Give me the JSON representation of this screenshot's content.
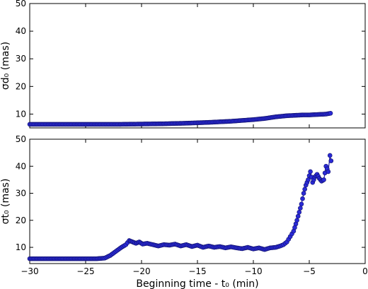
{
  "chart_data": [
    {
      "type": "line",
      "panel": "top",
      "ylabel": "σd₀ (mas)",
      "xlabel": "",
      "xlim": [
        -30,
        0
      ],
      "ylim": [
        5,
        50
      ],
      "yticks": [
        10,
        20,
        30,
        40,
        50
      ],
      "xticks": [
        -30,
        -25,
        -20,
        -15,
        -10,
        -5,
        0
      ],
      "show_x_tick_labels": false,
      "series": [
        {
          "color": "#2a2ad6",
          "x": [
            -30,
            -28,
            -26,
            -24,
            -22,
            -20,
            -18,
            -16,
            -14,
            -12,
            -11,
            -10,
            -9,
            -8.5,
            -8,
            -7.5,
            -7,
            -6.5,
            -6,
            -5.5,
            -5,
            -4.5,
            -4,
            -3.5,
            -3.1
          ],
          "y": [
            6.3,
            6.3,
            6.3,
            6.3,
            6.3,
            6.4,
            6.5,
            6.7,
            7.0,
            7.4,
            7.7,
            8.0,
            8.4,
            8.7,
            9.0,
            9.2,
            9.4,
            9.5,
            9.6,
            9.7,
            9.7,
            9.8,
            9.9,
            10.0,
            10.3
          ]
        }
      ]
    },
    {
      "type": "line",
      "panel": "bottom",
      "ylabel": "σt₀ (mas)",
      "xlabel": "Beginning time - t₀ (min)",
      "xlim": [
        -30,
        0
      ],
      "ylim": [
        4,
        50
      ],
      "yticks": [
        10,
        20,
        30,
        40,
        50
      ],
      "xticks": [
        -30,
        -25,
        -20,
        -15,
        -10,
        -5,
        0
      ],
      "xtick_labels": [
        "−30",
        "−25",
        "−20",
        "−15",
        "−10",
        "−5",
        "0"
      ],
      "show_x_tick_labels": true,
      "series": [
        {
          "color": "#2a2ad6",
          "x": [
            -30,
            -28,
            -26,
            -24,
            -23.3,
            -22.8,
            -22.3,
            -21.8,
            -21.4,
            -21.1,
            -20.8,
            -20.5,
            -20.2,
            -19.9,
            -19.5,
            -19,
            -18.5,
            -18,
            -17.5,
            -17,
            -16.5,
            -16,
            -15.5,
            -15,
            -14.5,
            -14,
            -13.5,
            -13,
            -12.5,
            -12,
            -11.5,
            -11,
            -10.5,
            -10,
            -9.5,
            -9,
            -8.5,
            -8,
            -7.6,
            -7.3,
            -7.0,
            -6.7,
            -6.4,
            -6.1,
            -5.9,
            -5.7,
            -5.5,
            -5.3,
            -5.1,
            -4.9,
            -4.7,
            -4.5,
            -4.3,
            -4.1,
            -3.9,
            -3.7,
            -3.5,
            -3.3,
            -3.15,
            -3.05
          ],
          "y": [
            5.8,
            5.8,
            5.8,
            5.8,
            6.0,
            7.0,
            8.5,
            10.0,
            11.0,
            12.5,
            12.0,
            11.5,
            12.0,
            11.2,
            11.5,
            11.0,
            10.5,
            11.0,
            10.8,
            11.2,
            10.5,
            11.0,
            10.3,
            10.8,
            10.0,
            10.5,
            10.0,
            10.3,
            9.8,
            10.2,
            9.8,
            9.5,
            10.0,
            9.4,
            9.8,
            9.2,
            9.8,
            10.0,
            10.5,
            11.0,
            12.0,
            14.0,
            16.0,
            20.0,
            23.0,
            26.0,
            30.0,
            33.0,
            35.0,
            38.0,
            34.0,
            36.0,
            37.0,
            35.5,
            34.5,
            35.0,
            40.0,
            38.0,
            44.0,
            42.0
          ]
        }
      ]
    }
  ]
}
